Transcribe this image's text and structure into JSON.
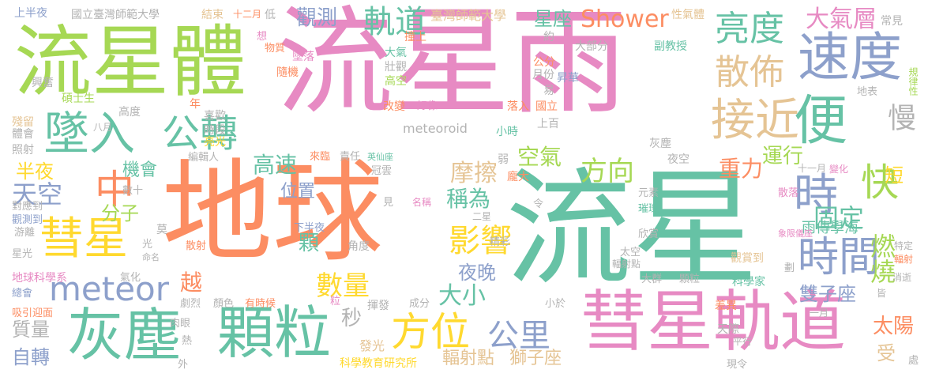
{
  "palette": {
    "green": "#66c2a5",
    "orange": "#fc8d62",
    "blue": "#8da0cb",
    "pink": "#e78ac3",
    "lime": "#a6d854",
    "yellow": "#ffd92f",
    "tan": "#e5c494",
    "gray": "#b3b3b3"
  },
  "words": {
    "diqiu": "地球",
    "liuxingyu": "流星雨",
    "liuxing": "流星",
    "liuxingti": "流星體",
    "huixing_guidao": "彗星軌道",
    "huichen": "灰塵",
    "keli": "顆粒",
    "sudu": "速度",
    "liangdu": "亮度",
    "bian": "便",
    "shi": "時",
    "kuai": "快",
    "shijian": "時間",
    "jiejin": "接近",
    "sanbu": "散佈",
    "zhuiru": "墜入",
    "gongzhuan": "公轉",
    "huixing": "彗星",
    "zhong": "中",
    "meteor": "meteor",
    "fangwei": "方位",
    "guidao": "軌道",
    "shower": "Shower",
    "daqiceng": "大氣層",
    "man": "慢",
    "guding": "固定",
    "yingxiang": "影響",
    "mocha": "摩擦",
    "fangxiang": "方向",
    "kongqi": "空氣",
    "zhongli": "重力",
    "yunxing": "運行",
    "gaosu": "高速",
    "chengwei": "稱為",
    "jihui": "機會",
    "tiankong": "天空",
    "fenzi": "分子",
    "shuliang": "數量",
    "daxiao": "大小",
    "gongli": "公里",
    "yewan": "夜晚",
    "ranshao": "燃燒",
    "taiyang": "太陽",
    "shuangzizuo": "雙子座",
    "guance": "觀測",
    "xingzuo": "星座",
    "banye": "半夜",
    "weizhi": "位置",
    "ke": "顆",
    "yue": "越",
    "miao": "秒",
    "zhiliang": "質量",
    "zizhuan": "自轉",
    "duan": "短",
    "shou": "受",
    "yuchuan": "雨傳學海",
    "fushedian": "輻射點",
    "shizizuo": "獅子座",
    "kexue_jiaoyu": "科學教育研究所",
    "faguang": "發光",
    "shangbanye": "上半夜",
    "ntnu1": "國立臺灣師範大學",
    "ntnu2": "臺灣師範大學",
    "jieshu": "結束",
    "shieryue": "十二月",
    "di": "低",
    "xingqiti": "性氣體",
    "changjian": "常見",
    "guilvxing": "規律性",
    "dibiao": "地表",
    "xiang": "想",
    "wuzhi": "物質",
    "zhuiluo": "墜落",
    "suiji": "隨機",
    "zhuangshang": "撞上",
    "daqi": "大氣",
    "zhuangguan": "壯觀",
    "gaokong": "高空",
    "yue_approx": "約",
    "dabufen": "大部分",
    "fujiaoshou": "副教授",
    "gongfen": "公分",
    "yuefen": "月份",
    "shenghua": "昇華",
    "yi": "易",
    "xingfen": "興奮",
    "shuoshisheng": "碩士生",
    "gaodu": "高度",
    "nian": "年",
    "xihuan": "喜歡",
    "shiduan": "時段",
    "liangguang": "亮光",
    "gaibian": "改變",
    "haoxiang": "好像",
    "luoru": "落入",
    "guoli": "國立",
    "xiaoshi": "小時",
    "shangbai": "上百",
    "meteoroid": "meteoroid",
    "huichen2": "灰塵",
    "yekong": "夜空",
    "canliu": "殘留",
    "tihui": "體會",
    "zhaoshe": "照射",
    "bayue": "八月",
    "bianjiren": "編輯人",
    "laiyuan": "來臨",
    "zeren": "責任",
    "yingxianzuo": "英仙座",
    "guanyun": "冠雲",
    "ruo": "弱",
    "pangda": "龐大",
    "shiyiyue": "十一月",
    "bianhua": "變化",
    "shushi": "數十",
    "yuansu": "元素",
    "sanluo": "散落",
    "xianfengxiang": "象限儀座",
    "daiyingdao": "對應到",
    "guancedao": "觀測到",
    "jian": "見",
    "mingcheng": "名稱",
    "erxing": "二星",
    "ling": "令",
    "cuican": "璀璨",
    "youli": "游離",
    "xingguang": "星光",
    "mo": "莫",
    "guang": "光",
    "mingming": "命名",
    "sanshe": "散射",
    "jiaodu": "角度",
    "jingcai": "精彩",
    "xinshang": "欣賞",
    "tedin": "特定",
    "fushe": "輻射",
    "xiabanye": "下半夜",
    "taikong": "太空",
    "fushedian2": "輻射點",
    "guanshangdao": "觀賞到",
    "hua": "劃",
    "diqiu_kexue": "地球科學系",
    "zonghui": "總會",
    "qihua": "氣化",
    "daqun": "大群",
    "keli2": "顆粒",
    "kexuejia": "科學家",
    "xiaoshi2": "消逝",
    "julie": "劇烈",
    "yanse": "顏色",
    "youshihou": "有時候",
    "jie": "皆",
    "xiyin": "吸引迎面",
    "lizi": "粒",
    "huifa": "揮發",
    "chengfen": "成分",
    "xiaoyu": "小於",
    "chayi": "差異",
    "yiyue": "一月",
    "ruyan": "肉眼",
    "tianji": "天際",
    "pingxing": "平行",
    "re": "熱",
    "xianling": "現令",
    "wai": "外",
    "chu": "處"
  }
}
